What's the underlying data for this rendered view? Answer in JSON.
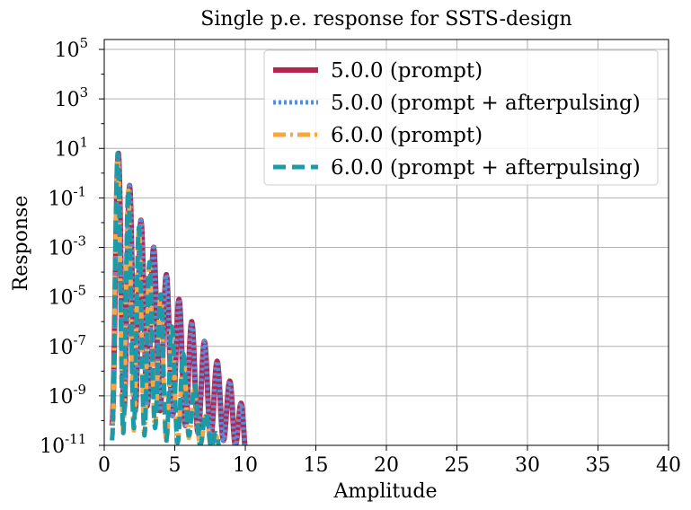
{
  "chart_data": {
    "type": "line",
    "title": "Single p.e. response for SSTS-design",
    "xlabel": "Amplitude",
    "ylabel": "Response",
    "xlim": [
      0,
      40
    ],
    "ylim_exponents": [
      -11,
      5.4
    ],
    "yscale": "log",
    "grid": true,
    "legend_placement": "top-right",
    "xticks": [
      "0",
      "5",
      "10",
      "15",
      "20",
      "25",
      "30",
      "35",
      "40"
    ],
    "yticks": [
      {
        "exp": -11,
        "label": "-11"
      },
      {
        "exp": -9,
        "label": "-9"
      },
      {
        "exp": -7,
        "label": "-7"
      },
      {
        "exp": -5,
        "label": "-5"
      },
      {
        "exp": -3,
        "label": "-3"
      },
      {
        "exp": -1,
        "label": "-1"
      },
      {
        "exp": 1,
        "label": "1"
      },
      {
        "exp": 3,
        "label": "3"
      },
      {
        "exp": 5,
        "label": "5"
      }
    ],
    "series": [
      {
        "name": "5.0.0 (prompt)",
        "color": "#b5254f",
        "style": "solid",
        "peaks": [
          [
            1.0,
            0.8
          ],
          [
            1.8,
            -0.5
          ],
          [
            2.6,
            -1.9
          ],
          [
            3.5,
            -3.0
          ],
          [
            4.4,
            -4.1
          ],
          [
            5.3,
            -5.1
          ],
          [
            6.2,
            -6.0
          ],
          [
            7.1,
            -6.8
          ],
          [
            8.0,
            -7.6
          ],
          [
            8.9,
            -8.4
          ],
          [
            9.7,
            -9.3
          ]
        ],
        "troughs": [
          [
            0.55,
            -10.2
          ],
          [
            1.4,
            -9.6
          ],
          [
            2.2,
            -9.6
          ],
          [
            3.05,
            -9.4
          ],
          [
            3.95,
            -9.6
          ],
          [
            4.85,
            -9.8
          ],
          [
            5.75,
            -10.2
          ],
          [
            6.65,
            -10.5
          ],
          [
            7.55,
            -10.7
          ],
          [
            8.45,
            -10.8
          ],
          [
            9.3,
            -11.0
          ],
          [
            10.1,
            -11.6
          ]
        ]
      },
      {
        "name": "5.0.0 (prompt + afterpulsing)",
        "color": "#5b8cd6",
        "style": "dotted",
        "peaks": [
          [
            1.0,
            0.8
          ],
          [
            1.8,
            -0.5
          ],
          [
            2.6,
            -1.9
          ],
          [
            3.5,
            -3.0
          ],
          [
            4.4,
            -4.1
          ],
          [
            5.3,
            -5.1
          ],
          [
            6.2,
            -6.0
          ],
          [
            7.1,
            -6.8
          ],
          [
            8.0,
            -7.6
          ],
          [
            8.9,
            -8.4
          ],
          [
            9.7,
            -9.3
          ]
        ],
        "troughs": [
          [
            0.55,
            -10.2
          ],
          [
            1.4,
            -9.6
          ],
          [
            2.2,
            -9.6
          ],
          [
            3.05,
            -9.4
          ],
          [
            3.95,
            -9.6
          ],
          [
            4.85,
            -9.8
          ],
          [
            5.75,
            -10.2
          ],
          [
            6.65,
            -10.5
          ],
          [
            7.55,
            -10.7
          ],
          [
            8.45,
            -10.8
          ],
          [
            9.3,
            -11.0
          ],
          [
            10.1,
            -11.6
          ]
        ]
      },
      {
        "name": "6.0.0 (prompt)",
        "color": "#f9a63e",
        "style": "dashdot",
        "peaks": [
          [
            0.95,
            0.8
          ],
          [
            1.7,
            -0.7
          ],
          [
            2.45,
            -2.2
          ],
          [
            3.2,
            -3.7
          ],
          [
            4.0,
            -4.9
          ],
          [
            4.8,
            -6.3
          ],
          [
            5.6,
            -7.3
          ],
          [
            6.4,
            -8.7
          ],
          [
            7.2,
            -9.8
          ],
          [
            7.9,
            -10.6
          ]
        ],
        "troughs": [
          [
            0.55,
            -10.8
          ],
          [
            1.35,
            -10.5
          ],
          [
            2.1,
            -10.4
          ],
          [
            2.85,
            -10.6
          ],
          [
            3.6,
            -10.3
          ],
          [
            4.4,
            -10.9
          ],
          [
            5.2,
            -10.9
          ],
          [
            6.0,
            -10.7
          ],
          [
            6.8,
            -11.1
          ],
          [
            7.6,
            -11.1
          ],
          [
            8.3,
            -11.4
          ]
        ]
      },
      {
        "name": "6.0.0 (prompt + afterpulsing)",
        "color": "#1b9aaa",
        "style": "dashed",
        "peaks": [
          [
            0.95,
            0.8
          ],
          [
            1.7,
            -0.7
          ],
          [
            2.45,
            -2.2
          ],
          [
            3.2,
            -3.6
          ],
          [
            4.0,
            -4.9
          ],
          [
            4.8,
            -6.2
          ],
          [
            5.6,
            -7.3
          ],
          [
            6.4,
            -8.6
          ],
          [
            7.2,
            -9.7
          ],
          [
            7.9,
            -10.5
          ]
        ],
        "troughs": [
          [
            0.55,
            -10.8
          ],
          [
            1.35,
            -10.5
          ],
          [
            2.1,
            -10.3
          ],
          [
            2.85,
            -10.6
          ],
          [
            3.6,
            -10.3
          ],
          [
            4.4,
            -10.8
          ],
          [
            5.2,
            -10.9
          ],
          [
            6.0,
            -10.6
          ],
          [
            6.8,
            -11.0
          ],
          [
            7.6,
            -11.1
          ],
          [
            8.3,
            -11.4
          ]
        ]
      }
    ]
  }
}
